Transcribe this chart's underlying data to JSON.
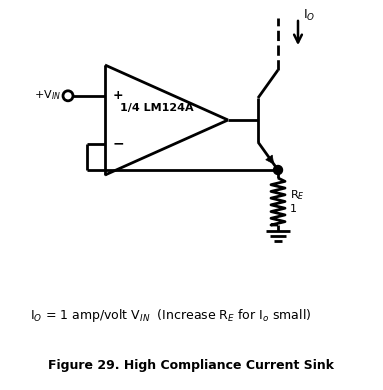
{
  "bg_color": "#ffffff",
  "line_color": "#000000",
  "line_width": 2.0,
  "title": "Figure 29. High Compliance Current Sink",
  "opamp_label": "1/4 LM124A",
  "re_label": "R$_E$",
  "re_value": "1",
  "io_label": "I$_O$",
  "vin_label": "+V$_{IN}$",
  "eq_part1": "I",
  "eq_sub_O": "O",
  "eq_rest": " = 1 amp/volt V",
  "eq_sub_IN": "IN",
  "eq_paren": "  (Increase R",
  "eq_sub_E": "E",
  "eq_end": " for I",
  "eq_sub_o": "o",
  "eq_final": " small)"
}
